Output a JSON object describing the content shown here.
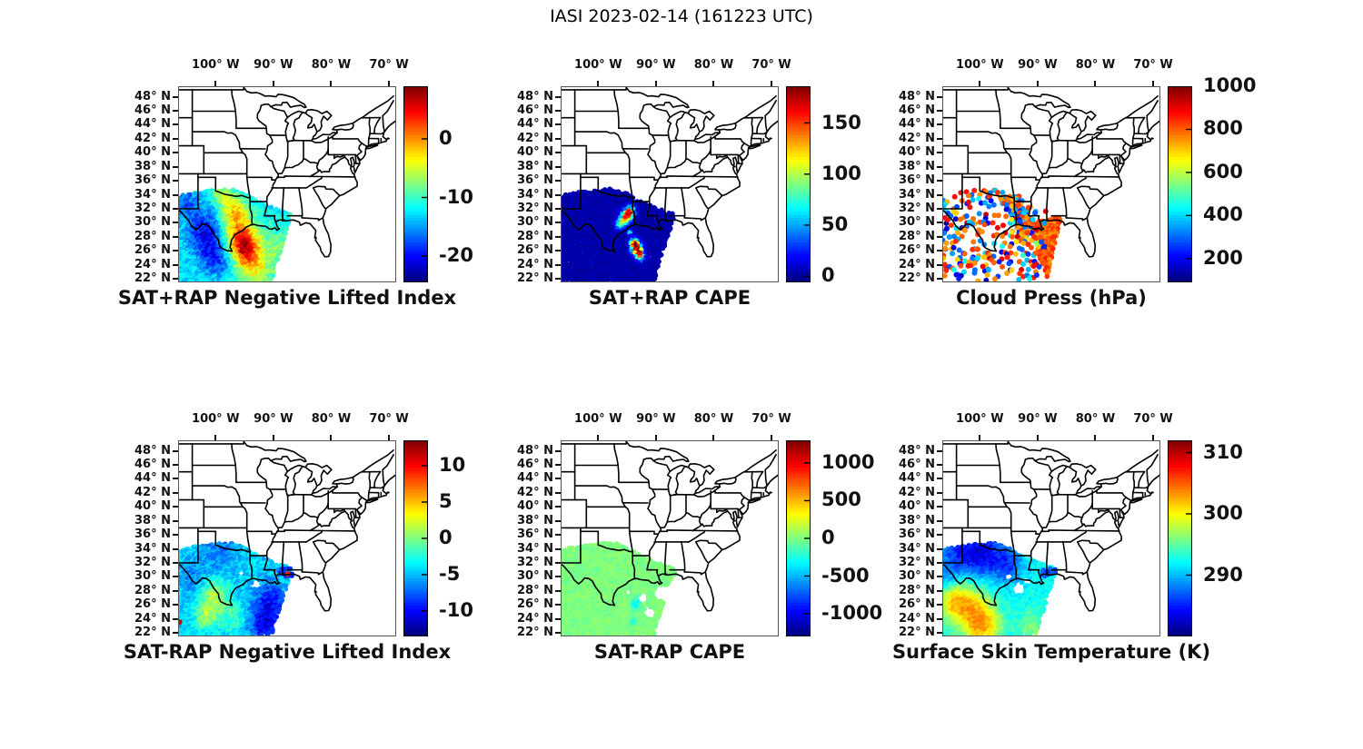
{
  "header": {
    "title": "IASI 2023-02-14 (161223 UTC)"
  },
  "chart_data": {
    "type": "scatter",
    "layout": "2 rows x 3 columns of geographic scatter maps with vertical jet colorbars",
    "projection": {
      "lon_min": -106.5,
      "lon_max": -68.75,
      "lat_min": 21.5,
      "lat_max": 49.5
    },
    "x_ticks": {
      "values": [
        -100,
        -90,
        -80,
        -70
      ],
      "labels": [
        "100° W",
        "90° W",
        "80° W",
        "70° W"
      ]
    },
    "y_ticks": {
      "values": [
        48,
        46,
        44,
        42,
        40,
        38,
        36,
        34,
        32,
        30,
        28,
        26,
        24,
        22
      ],
      "labels": [
        "48° N",
        "46° N",
        "44° N",
        "42° N",
        "40° N",
        "38° N",
        "36° N",
        "34° N",
        "32° N",
        "30° N",
        "28° N",
        "26° N",
        "24° N",
        "22° N"
      ]
    },
    "swaths": {
      "main": [
        [
          -106.6,
          33.9
        ],
        [
          -103.5,
          34.35
        ],
        [
          -100.5,
          34.7
        ],
        [
          -97.3,
          34.9
        ],
        [
          -95.0,
          34.2
        ],
        [
          -92.5,
          33.0
        ],
        [
          -89.8,
          32.1
        ],
        [
          -86.7,
          31.2
        ],
        [
          -90.3,
          21.7
        ],
        [
          -106.6,
          21.6
        ]
      ],
      "neast": [
        [
          -89.3,
          29.9
        ],
        [
          -86.6,
          30.15
        ],
        [
          -86.9,
          31.35
        ],
        [
          -89.2,
          31.1
        ]
      ],
      "wedge": [
        [
          -91.4,
          30.0
        ],
        [
          -85.95,
          30.85
        ],
        [
          -88.35,
          22.2
        ],
        [
          -89.9,
          25.6
        ]
      ],
      "band": [
        [
          -95.8,
          33.7
        ],
        [
          -93.0,
          33.9
        ],
        [
          -90.4,
          28.8
        ],
        [
          -92.6,
          27.0
        ]
      ]
    },
    "panels": [
      {
        "title": "SAT+RAP Negative Lifted Index",
        "colorbar": {
          "min": -24.5,
          "max": 9,
          "ticks": [
            0,
            -10,
            -20
          ]
        },
        "layers": [
          {
            "kind": "field",
            "swath": "main",
            "seed": 11,
            "step": 2.4,
            "r": 2.6,
            "keep": 1,
            "base": -12.5,
            "noise": 2.2,
            "blobs": [
              [
                -101.8,
                28.5,
                2.2,
                -8
              ],
              [
                -99.8,
                25.0,
                1.8,
                -6
              ],
              [
                -105.2,
                32.8,
                1.5,
                -5
              ],
              [
                -95.8,
                28.5,
                2.2,
                10
              ],
              [
                -94.3,
                25.3,
                1.6,
                9
              ],
              [
                -95.2,
                26.8,
                1.5,
                8
              ],
              [
                -96.9,
                31.9,
                1.6,
                8
              ],
              [
                -98.9,
                34.0,
                1.0,
                6
              ],
              [
                -89.5,
                26.0,
                2.4,
                4.5
              ],
              [
                -93.0,
                22.8,
                1.8,
                6
              ]
            ],
            "holes": []
          }
        ],
        "extras": []
      },
      {
        "title": "SAT+RAP CAPE",
        "colorbar": {
          "min": -6,
          "max": 186,
          "ticks": [
            0,
            50,
            100,
            150
          ]
        },
        "layers": [
          {
            "kind": "field",
            "swath": "main",
            "seed": 22,
            "step": 2.4,
            "r": 2.6,
            "keep": 1,
            "base": 2,
            "noise": 3.5,
            "blobs": [
              [
                -94.5,
                31.4,
                0.55,
                165
              ],
              [
                -95.3,
                30.5,
                0.6,
                140
              ],
              [
                -96.2,
                29.6,
                0.5,
                70
              ],
              [
                -93.7,
                26.9,
                0.5,
                150
              ],
              [
                -93.1,
                26.0,
                0.6,
                165
              ],
              [
                -92.6,
                25.2,
                0.45,
                110
              ],
              [
                -94.6,
                28.6,
                0.3,
                60
              ]
            ],
            "holes": []
          }
        ],
        "extras": []
      },
      {
        "title": "Cloud Press (hPa)",
        "colorbar": {
          "min": 90,
          "max": 1000,
          "ticks": [
            200,
            400,
            600,
            800,
            1000
          ]
        },
        "layers": [
          {
            "kind": "field",
            "swath": "wedge",
            "seed": 33,
            "step": 2.3,
            "r": 2.8,
            "keep": 1,
            "base": 800,
            "noise": 55,
            "blobs": [
              [
                -90.4,
                27.3,
                0.5,
                -380
              ],
              [
                -89.3,
                23.8,
                0.6,
                80
              ]
            ],
            "holes": []
          },
          {
            "kind": "mix",
            "swath": "band",
            "seed": 34,
            "step": 2.6,
            "r": 3.0,
            "keep": 0.8,
            "modes": [
              {
                "p": 0.55,
                "mean": 290,
                "sd": 80
              },
              {
                "p": 0.45,
                "mean": 800,
                "sd": 70
              }
            ],
            "holes": []
          },
          {
            "kind": "mix",
            "swath": "main",
            "seed": 35,
            "step": 4.6,
            "r": 3.0,
            "keep": 0.5,
            "modes": [
              {
                "p": 0.45,
                "mean": 300,
                "sd": 110
              },
              {
                "p": 0.55,
                "mean": 800,
                "sd": 80
              }
            ],
            "holes": []
          }
        ],
        "extras": []
      },
      {
        "title": "SAT-RAP Negative Lifted Index",
        "colorbar": {
          "min": -13.5,
          "max": 13.5,
          "ticks": [
            10,
            5,
            0,
            -5,
            -10
          ]
        },
        "layers": [
          {
            "kind": "field",
            "swath": "main",
            "seed": 44,
            "step": 2.4,
            "r": 2.6,
            "keep": 1,
            "base": -4.5,
            "noise": 1.6,
            "blobs": [
              [
                -99.9,
                27.1,
                1.7,
                6
              ],
              [
                -101.6,
                24.2,
                1.4,
                5
              ],
              [
                -96.9,
                24.0,
                1.3,
                3
              ],
              [
                -90.6,
                26.2,
                2.0,
                -5.5
              ],
              [
                -91.6,
                22.8,
                1.6,
                -5
              ],
              [
                -99.2,
                33.6,
                2.2,
                -2.5
              ],
              [
                -104.0,
                30.0,
                1.8,
                -2
              ]
            ],
            "holes": [
              [
                -92.9,
                29.0,
                0.8
              ],
              [
                -95.5,
                30.5,
                0.45
              ]
            ]
          },
          {
            "kind": "field",
            "swath": "neast",
            "seed": 45,
            "step": 2.6,
            "r": 2.6,
            "keep": 0.7,
            "base": -9,
            "noise": 2.5,
            "blobs": [],
            "holes": []
          }
        ],
        "extras": [
          [
            -87.55,
            30.42,
            9.5
          ],
          [
            -106.25,
            23.55,
            12
          ]
        ]
      },
      {
        "title": "SAT-RAP CAPE",
        "colorbar": {
          "min": -1300,
          "max": 1300,
          "ticks": [
            1000,
            500,
            0,
            -500,
            -1000
          ]
        },
        "layers": [
          {
            "kind": "field",
            "swath": "main",
            "seed": 55,
            "step": 2.4,
            "r": 2.6,
            "keep": 1,
            "base": 0,
            "noise": 55,
            "blobs": [
              [
                -93.45,
                26.0,
                0.55,
                -430
              ],
              [
                -93.85,
                23.55,
                0.4,
                -280
              ]
            ],
            "holes": [
              [
                -92.2,
                26.9,
                0.85
              ],
              [
                -91.15,
                24.85,
                1.0
              ],
              [
                -94.7,
                27.8,
                0.5
              ],
              [
                -89.0,
                27.8,
                1.3
              ]
            ]
          },
          {
            "kind": "field",
            "swath": "neast",
            "seed": 56,
            "step": 2.6,
            "r": 2.6,
            "keep": 0.75,
            "base": 0,
            "noise": 50,
            "blobs": [],
            "holes": []
          }
        ],
        "extras": []
      },
      {
        "title": "Surface Skin Temperature (K)",
        "colorbar": {
          "min": 280,
          "max": 312,
          "ticks": [
            310,
            300,
            290
          ]
        },
        "layers": [
          {
            "kind": "field",
            "swath": "main",
            "seed": 66,
            "step": 2.4,
            "r": 2.6,
            "keep": 1,
            "base": 292,
            "noise": 1.3,
            "blobs": [
              [
                -103.2,
                33.3,
                2.8,
                -6.5
              ],
              [
                -98.8,
                33.0,
                2.4,
                -6.5
              ],
              [
                -94.8,
                31.5,
                1.8,
                -5
              ],
              [
                -106.0,
                29.5,
                1.5,
                -3
              ],
              [
                -102.0,
                25.8,
                2.6,
                8
              ],
              [
                -99.2,
                22.8,
                2.2,
                9
              ],
              [
                -104.8,
                26.5,
                1.8,
                6
              ],
              [
                -91.2,
                22.6,
                1.6,
                4
              ],
              [
                -87.5,
                25.5,
                2.0,
                1
              ]
            ],
            "holes": [
              [
                -93.3,
                28.3,
                1.1
              ],
              [
                -91.9,
                29.4,
                0.7
              ],
              [
                -95.2,
                30.0,
                0.6
              ]
            ]
          },
          {
            "kind": "field",
            "swath": "neast",
            "seed": 67,
            "step": 2.6,
            "r": 2.6,
            "keep": 0.8,
            "base": 286.5,
            "noise": 2,
            "blobs": [],
            "holes": []
          }
        ],
        "extras": []
      }
    ],
    "notes": "IASI sounder retrieval swath over Texas / Gulf of Mexico; point values estimated from the jet colorbars of each panel."
  }
}
